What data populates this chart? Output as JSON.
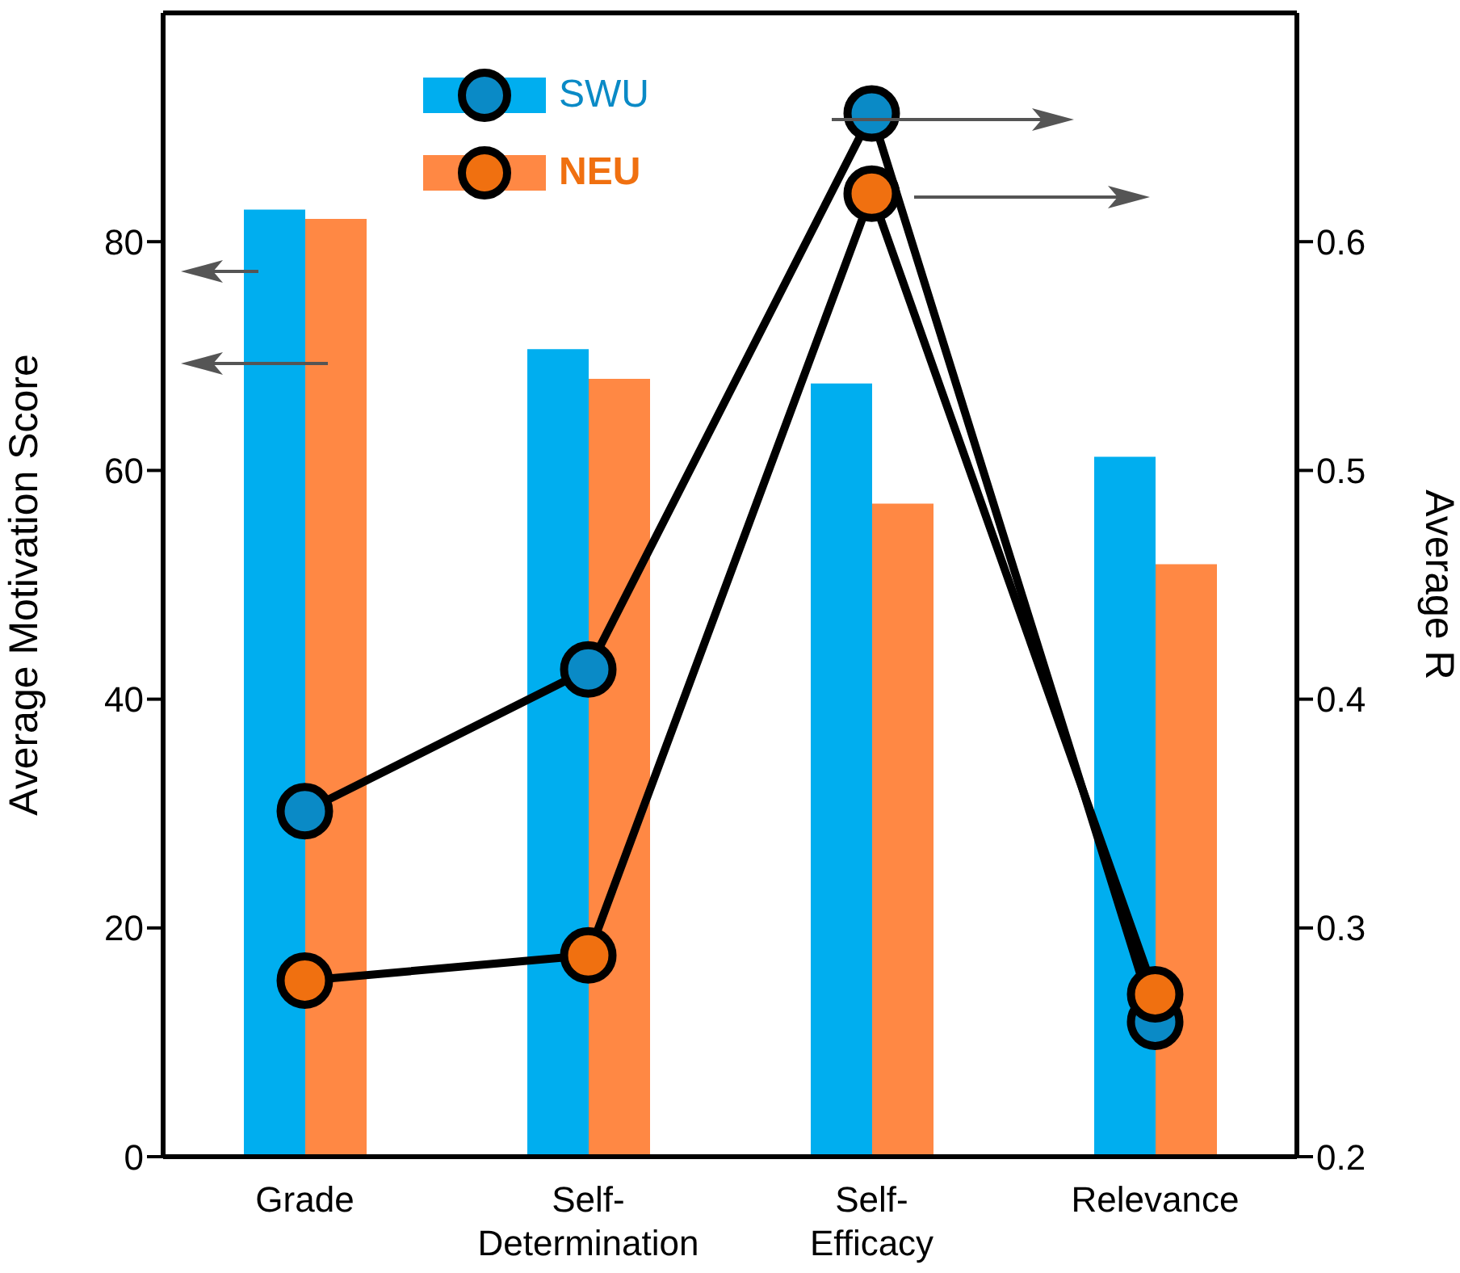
{
  "chart_data": {
    "type": "bar",
    "xlabel": null,
    "ylabel": "Average Motivation Score",
    "y2label": "Average R",
    "categories": [
      "Grade",
      "Self-Determination",
      "Self-Efficacy",
      "Relevance"
    ],
    "series": [
      {
        "name": "SWU",
        "color": "#00aeef",
        "values": [
          82.8,
          70.6,
          67.6,
          61.2
        ]
      },
      {
        "name": "NEU",
        "color": "#ff8844",
        "values": [
          82.0,
          68.0,
          57.1,
          51.8
        ]
      },
      {
        "type": "line",
        "axis": "y2",
        "color": "#000000",
        "colors": [
          "#0a8ac6",
          "#0a8ac6",
          "#0a8ac6",
          "#0a8ac6"
        ],
        "values": [
          0.351,
          0.413,
          0.656,
          0.259
        ]
      },
      {
        "type": "line",
        "axis": "y2",
        "color": "#000000",
        "colors": [
          "#f07010",
          "#f07010",
          "#f07010",
          "#f07010"
        ],
        "values": [
          0.277,
          0.288,
          0.621,
          0.271
        ]
      }
    ],
    "ylim": [
      0,
      100
    ],
    "yticks": [
      0,
      20,
      40,
      60,
      80
    ],
    "y2lim": [
      0.2,
      0.7
    ],
    "y2ticks": [
      0.2,
      0.3,
      0.4,
      0.5,
      0.6
    ],
    "marker": "circle",
    "line_style": "solid",
    "legend": "top left"
  }
}
